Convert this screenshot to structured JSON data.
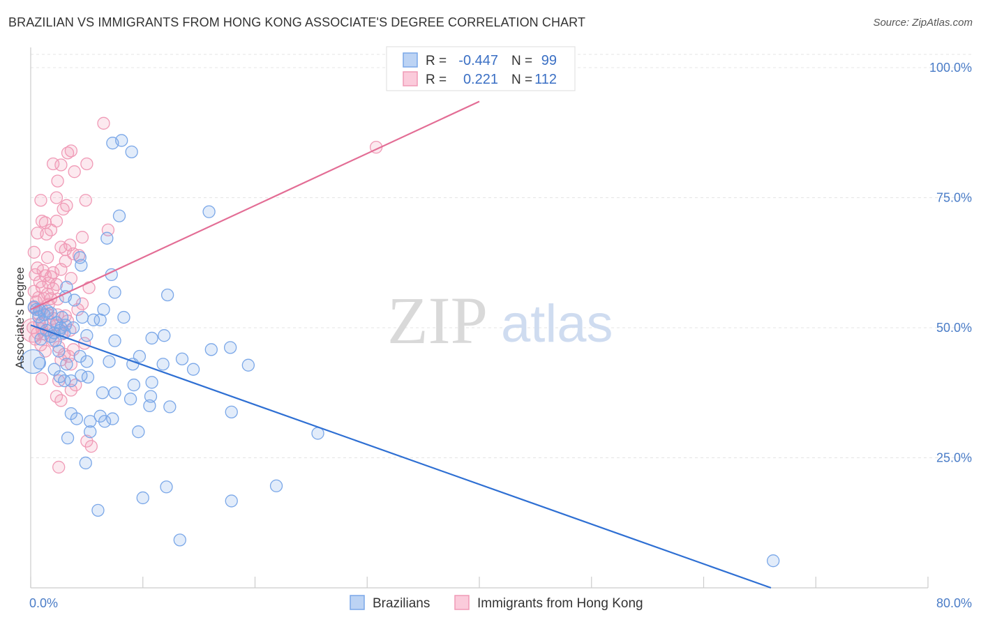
{
  "title": "BRAZILIAN VS IMMIGRANTS FROM HONG KONG ASSOCIATE'S DEGREE CORRELATION CHART",
  "source": "Source: ZipAtlas.com",
  "watermark": {
    "zip": "ZIP",
    "atlas": "atlas"
  },
  "chart_data": {
    "type": "scatter",
    "xlabel": "",
    "ylabel": "Associate's Degree",
    "xlim": [
      0,
      80
    ],
    "ylim": [
      0,
      100
    ],
    "x_ticks": [
      {
        "value": 0,
        "label": "0.0%"
      },
      {
        "value": 80,
        "label": "80.0%"
      }
    ],
    "y_ticks": [
      {
        "value": 25,
        "label": "25.0%"
      },
      {
        "value": 50,
        "label": "50.0%"
      },
      {
        "value": 75,
        "label": "75.0%"
      },
      {
        "value": 100,
        "label": "100.0%"
      }
    ],
    "grid": true,
    "legend_position": "bottom",
    "stats_box": [
      {
        "r_label": "R =",
        "r": "-0.447",
        "n_label": "N =",
        "n": "99",
        "color": "#7aa7e8"
      },
      {
        "r_label": "R =",
        "r": "0.221",
        "n_label": "N =",
        "n": "112",
        "color": "#f09ab6"
      }
    ],
    "series": [
      {
        "name": "Brazilians",
        "color": "#7aa7e8",
        "line_color": "#2e6fd3",
        "trend": {
          "x0": 0,
          "y0": 50.5,
          "x1": 66,
          "y1": 0
        },
        "points": [
          [
            8.1,
            86
          ],
          [
            7.3,
            85.5
          ],
          [
            9.0,
            83.8
          ],
          [
            7.9,
            71.5
          ],
          [
            15.9,
            72.3
          ],
          [
            6.8,
            67.2
          ],
          [
            4.4,
            63.5
          ],
          [
            4.5,
            62
          ],
          [
            7.2,
            60.2
          ],
          [
            3.2,
            57.8
          ],
          [
            7.5,
            56.8
          ],
          [
            12.2,
            56.3
          ],
          [
            3.1,
            56
          ],
          [
            3.9,
            55.3
          ],
          [
            0.3,
            54
          ],
          [
            0.5,
            53.5
          ],
          [
            0.8,
            53.4
          ],
          [
            1.5,
            53.2
          ],
          [
            1.2,
            52.5
          ],
          [
            1.8,
            52.8
          ],
          [
            6.5,
            53.5
          ],
          [
            0.7,
            52.1
          ],
          [
            4.6,
            52
          ],
          [
            2.8,
            52
          ],
          [
            5.6,
            51.5
          ],
          [
            6.2,
            51.5
          ],
          [
            8.3,
            52
          ],
          [
            1.0,
            51
          ],
          [
            2.3,
            51
          ],
          [
            3.1,
            50.5
          ],
          [
            2.7,
            50
          ],
          [
            3.8,
            50
          ],
          [
            1.4,
            49.5
          ],
          [
            2.1,
            49
          ],
          [
            2.6,
            49.5
          ],
          [
            3.0,
            49
          ],
          [
            5.0,
            48.5
          ],
          [
            11.9,
            48.5
          ],
          [
            1.8,
            48.3
          ],
          [
            0.9,
            47.8
          ],
          [
            2.2,
            47.5
          ],
          [
            7.5,
            47.5
          ],
          [
            10.8,
            48
          ],
          [
            17.8,
            46.2
          ],
          [
            16.1,
            45.8
          ],
          [
            2.5,
            45.5
          ],
          [
            9.7,
            44.5
          ],
          [
            4.4,
            44.5
          ],
          [
            7.0,
            43.5
          ],
          [
            5.0,
            43.5
          ],
          [
            0.8,
            43.2
          ],
          [
            3.2,
            43
          ],
          [
            9.1,
            43
          ],
          [
            11.8,
            43
          ],
          [
            13.5,
            44
          ],
          [
            19.4,
            42.8
          ],
          [
            14.5,
            42
          ],
          [
            2.1,
            42
          ],
          [
            2.6,
            40.6
          ],
          [
            5.1,
            40.5
          ],
          [
            4.5,
            40.8
          ],
          [
            3.0,
            39.8
          ],
          [
            3.6,
            39.8
          ],
          [
            9.2,
            39
          ],
          [
            10.8,
            39.5
          ],
          [
            6.4,
            37.5
          ],
          [
            7.5,
            37.5
          ],
          [
            8.9,
            36.3
          ],
          [
            10.7,
            36.8
          ],
          [
            10.6,
            35
          ],
          [
            12.4,
            34.8
          ],
          [
            3.6,
            33.5
          ],
          [
            6.2,
            33
          ],
          [
            7.3,
            32.5
          ],
          [
            17.9,
            33.8
          ],
          [
            4.1,
            32.5
          ],
          [
            5.3,
            32
          ],
          [
            6.6,
            32
          ],
          [
            5.3,
            30
          ],
          [
            9.6,
            30
          ],
          [
            25.6,
            29.7
          ],
          [
            3.3,
            28.8
          ],
          [
            4.9,
            24
          ],
          [
            12.1,
            19.4
          ],
          [
            21.9,
            19.6
          ],
          [
            10.0,
            17.3
          ],
          [
            17.9,
            16.7
          ],
          [
            6.0,
            14.9
          ],
          [
            13.3,
            9.2
          ],
          [
            66.2,
            5.2
          ],
          [
            0.2,
            43.5
          ]
        ]
      },
      {
        "name": "Immigrants from Hong Kong",
        "color": "#f09ab6",
        "line_color": "#e36d95",
        "trend": {
          "x0": 0,
          "y0": 53.5,
          "x1": 40,
          "y1": 93.5
        },
        "points": [
          [
            6.5,
            89.3
          ],
          [
            3.6,
            84
          ],
          [
            3.3,
            83.6
          ],
          [
            2.0,
            81.5
          ],
          [
            2.7,
            81.3
          ],
          [
            5.0,
            81.5
          ],
          [
            3.9,
            80
          ],
          [
            2.4,
            78.2
          ],
          [
            2.3,
            75
          ],
          [
            0.9,
            74.5
          ],
          [
            4.9,
            74.5
          ],
          [
            3.2,
            73.5
          ],
          [
            2.9,
            72.8
          ],
          [
            1.0,
            70.5
          ],
          [
            1.3,
            70.2
          ],
          [
            2.3,
            70.5
          ],
          [
            1.8,
            68.8
          ],
          [
            6.9,
            68.8
          ],
          [
            0.6,
            68.2
          ],
          [
            1.4,
            68
          ],
          [
            4.6,
            67.4
          ],
          [
            3.5,
            65.9
          ],
          [
            2.7,
            65.5
          ],
          [
            3.1,
            65
          ],
          [
            0.3,
            64.5
          ],
          [
            3.8,
            64.2
          ],
          [
            4.3,
            63.9
          ],
          [
            1.5,
            63.5
          ],
          [
            3.1,
            62.8
          ],
          [
            0.6,
            61.5
          ],
          [
            1.1,
            61
          ],
          [
            2.0,
            60.6
          ],
          [
            2.7,
            61.2
          ],
          [
            0.4,
            60.2
          ],
          [
            1.3,
            60
          ],
          [
            1.8,
            59.8
          ],
          [
            3.6,
            59.5
          ],
          [
            0.8,
            58.8
          ],
          [
            1.6,
            58.6
          ],
          [
            2.3,
            58.3
          ],
          [
            1.0,
            57.8
          ],
          [
            2.0,
            57.5
          ],
          [
            5.2,
            57.7
          ],
          [
            0.3,
            57
          ],
          [
            1.5,
            56.5
          ],
          [
            0.7,
            55.8
          ],
          [
            1.2,
            55.6
          ],
          [
            1.8,
            55.6
          ],
          [
            2.4,
            55.5
          ],
          [
            0.5,
            55
          ],
          [
            1.6,
            54.5
          ],
          [
            4.6,
            54.6
          ],
          [
            0.3,
            53.8
          ],
          [
            1.0,
            53.5
          ],
          [
            4.2,
            53.5
          ],
          [
            0.7,
            52.7
          ],
          [
            1.5,
            52.6
          ],
          [
            2.4,
            52.5
          ],
          [
            3.1,
            52.3
          ],
          [
            2.0,
            51.8
          ],
          [
            3.3,
            51.3
          ],
          [
            0.8,
            50.8
          ],
          [
            1.7,
            50.6
          ],
          [
            2.3,
            50.5
          ],
          [
            0.2,
            50
          ],
          [
            1.0,
            49.8
          ],
          [
            1.6,
            49.6
          ],
          [
            2.6,
            49.5
          ],
          [
            3.5,
            49.5
          ],
          [
            0.6,
            49
          ],
          [
            1.2,
            48.8
          ],
          [
            2.8,
            48.8
          ],
          [
            1.8,
            48.3
          ],
          [
            0.4,
            47.8
          ],
          [
            2.0,
            47.5
          ],
          [
            4.8,
            47
          ],
          [
            0.9,
            46.7
          ],
          [
            2.5,
            46.3
          ],
          [
            3.8,
            45.8
          ],
          [
            1.3,
            45.5
          ],
          [
            3.0,
            44.9
          ],
          [
            3.4,
            44.5
          ],
          [
            2.7,
            43.8
          ],
          [
            3.6,
            43
          ],
          [
            1.0,
            40.2
          ],
          [
            2.5,
            39.8
          ],
          [
            4.0,
            39
          ],
          [
            3.6,
            38
          ],
          [
            2.3,
            36.8
          ],
          [
            2.7,
            36
          ],
          [
            5.0,
            28.2
          ],
          [
            5.4,
            27.2
          ],
          [
            2.5,
            23.2
          ],
          [
            30.8,
            84.7
          ],
          [
            0.2,
            49.5
          ]
        ]
      }
    ]
  }
}
